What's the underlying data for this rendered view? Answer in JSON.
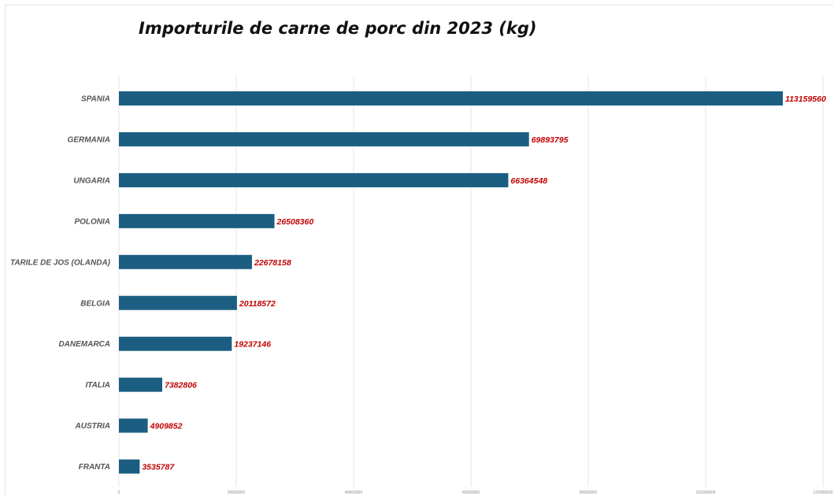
{
  "chart_data": {
    "type": "bar",
    "orientation": "horizontal",
    "title": "Importurile de carne de porc din 2023 (kg)",
    "xlabel": "",
    "ylabel": "",
    "categories": [
      "SPANIA",
      "GERMANIA",
      "UNGARIA",
      "POLONIA",
      "TARILE DE JOS (OLANDA)",
      "BELGIA",
      "DANEMARCA",
      "ITALIA",
      "AUSTRIA",
      "FRANTA"
    ],
    "values": [
      113159560,
      69893795,
      66364548,
      26508360,
      22678158,
      20118572,
      19237146,
      7382806,
      4909852,
      3535787
    ],
    "data_labels": [
      "113159560",
      "69893795",
      "66364548",
      "26508360",
      "22678158",
      "20118572",
      "19237146",
      "7382806",
      "4909852",
      "3535787"
    ],
    "xlim": [
      0,
      120000000
    ],
    "x_ticks": [
      0,
      20000000,
      40000000,
      60000000,
      80000000,
      100000000,
      120000000
    ],
    "x_tick_labels": [
      "0",
      "20000000",
      "40000000",
      "60000000",
      "80000000",
      "100000000",
      "120000000"
    ],
    "grid": true,
    "legend": "none",
    "colors": {
      "bar": "#1b5e82",
      "data_label": "#c00000",
      "category_label": "#555555",
      "gridline": "#e6e6e6"
    }
  }
}
